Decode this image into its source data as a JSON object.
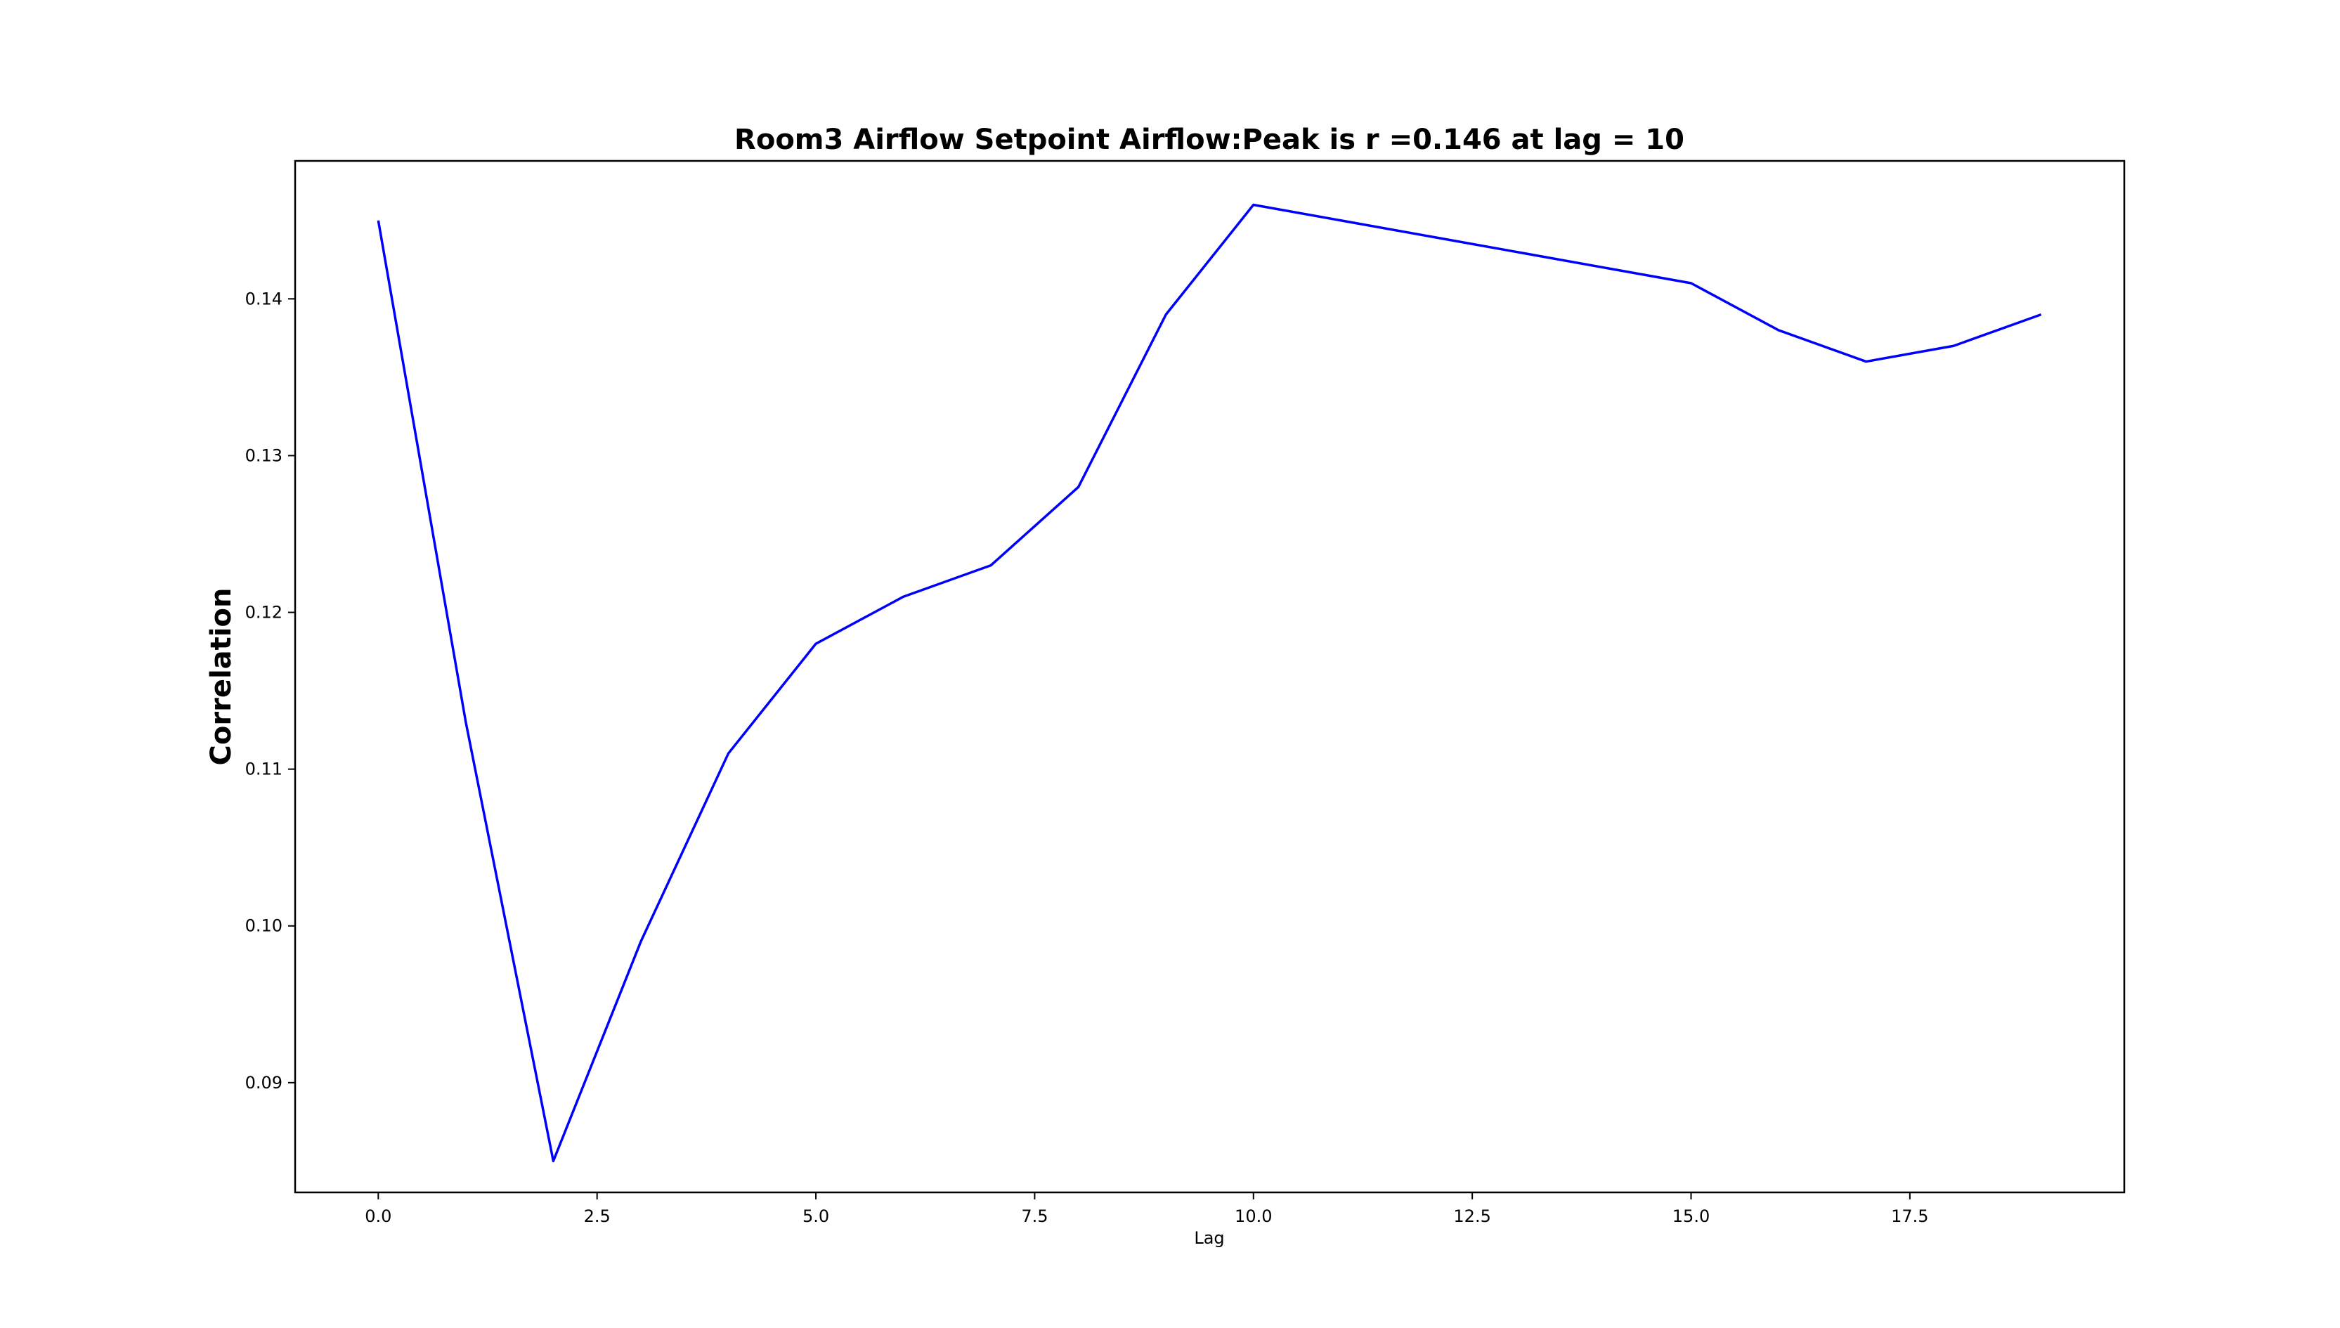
{
  "chart_data": {
    "type": "line",
    "title": "Room3 Airflow Setpoint Airflow:Peak is r =0.146 at lag = 10",
    "xlabel": "Lag",
    "ylabel": "Correlation",
    "xlim": [
      -0.95,
      19.95
    ],
    "ylim": [
      0.083,
      0.1488
    ],
    "x_ticks": [
      0.0,
      2.5,
      5.0,
      7.5,
      10.0,
      12.5,
      15.0,
      17.5
    ],
    "x_tick_labels": [
      "0.0",
      "2.5",
      "5.0",
      "7.5",
      "10.0",
      "12.5",
      "15.0",
      "17.5"
    ],
    "y_ticks": [
      0.09,
      0.1,
      0.11,
      0.12,
      0.13,
      0.14
    ],
    "y_tick_labels": [
      "0.09",
      "0.10",
      "0.11",
      "0.12",
      "0.13",
      "0.14"
    ],
    "grid": false,
    "series": [
      {
        "color": "#0000ff",
        "x": [
          0,
          1,
          2,
          3,
          4,
          5,
          6,
          7,
          8,
          9,
          10,
          15,
          16,
          17,
          18,
          19
        ],
        "y": [
          0.145,
          0.113,
          0.085,
          0.099,
          0.111,
          0.118,
          0.121,
          0.123,
          0.128,
          0.139,
          0.146,
          0.141,
          0.138,
          0.136,
          0.137,
          0.139
        ]
      }
    ]
  }
}
